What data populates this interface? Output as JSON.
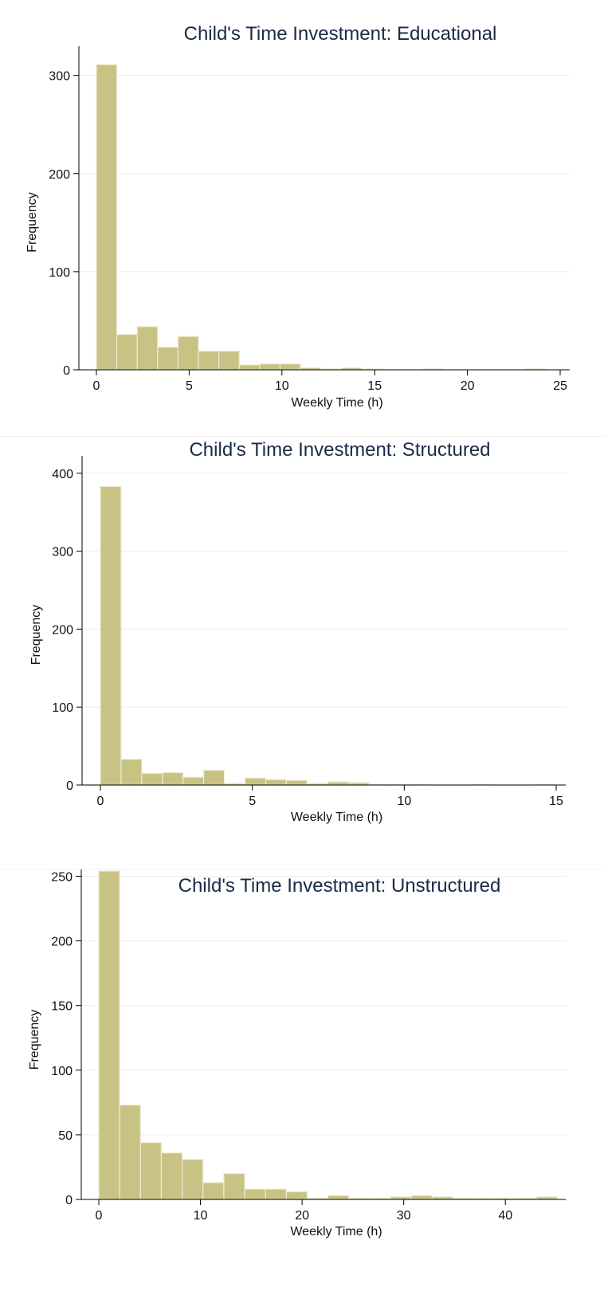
{
  "chart_data": [
    {
      "type": "bar",
      "title": "Child's Time Investment: Educational",
      "xlabel": "Weekly Time (h)",
      "ylabel": "Frequency",
      "xlim": [
        0,
        25
      ],
      "ylim": [
        0,
        320
      ],
      "xticks": [
        0,
        5,
        10,
        15,
        20,
        25
      ],
      "yticks": [
        0,
        100,
        200,
        300
      ],
      "grid": true,
      "bin_width": 1.1,
      "bins": [
        {
          "x0": 0.0,
          "value": 311
        },
        {
          "x0": 1.1,
          "value": 36
        },
        {
          "x0": 2.2,
          "value": 44
        },
        {
          "x0": 3.3,
          "value": 23
        },
        {
          "x0": 4.4,
          "value": 34
        },
        {
          "x0": 5.5,
          "value": 19
        },
        {
          "x0": 6.6,
          "value": 19
        },
        {
          "x0": 7.7,
          "value": 5
        },
        {
          "x0": 8.8,
          "value": 6
        },
        {
          "x0": 9.9,
          "value": 6
        },
        {
          "x0": 11.0,
          "value": 2
        },
        {
          "x0": 12.1,
          "value": 1
        },
        {
          "x0": 13.2,
          "value": 2
        },
        {
          "x0": 14.3,
          "value": 1
        },
        {
          "x0": 17.6,
          "value": 1
        },
        {
          "x0": 23.1,
          "value": 1
        }
      ]
    },
    {
      "type": "bar",
      "title": "Child's Time Investment: Structured",
      "xlabel": "Weekly Time (h)",
      "ylabel": "Frequency",
      "xlim": [
        0,
        15
      ],
      "ylim": [
        0,
        410
      ],
      "xticks": [
        0,
        5,
        10,
        15
      ],
      "yticks": [
        0,
        100,
        200,
        300,
        400
      ],
      "grid": true,
      "bin_width": 0.68,
      "bins": [
        {
          "x0": 0.0,
          "value": 383
        },
        {
          "x0": 0.68,
          "value": 33
        },
        {
          "x0": 1.36,
          "value": 15
        },
        {
          "x0": 2.04,
          "value": 16
        },
        {
          "x0": 2.72,
          "value": 10
        },
        {
          "x0": 3.4,
          "value": 19
        },
        {
          "x0": 4.08,
          "value": 2
        },
        {
          "x0": 4.76,
          "value": 9
        },
        {
          "x0": 5.44,
          "value": 7
        },
        {
          "x0": 6.12,
          "value": 6
        },
        {
          "x0": 6.8,
          "value": 2
        },
        {
          "x0": 7.48,
          "value": 4
        },
        {
          "x0": 8.16,
          "value": 3
        },
        {
          "x0": 8.84,
          "value": 1
        },
        {
          "x0": 9.52,
          "value": 1
        },
        {
          "x0": 10.2,
          "value": 1
        },
        {
          "x0": 12.24,
          "value": 1
        },
        {
          "x0": 14.28,
          "value": 1
        }
      ]
    },
    {
      "type": "bar",
      "title": "Child's Time Investment: Unstructured",
      "xlabel": "Weekly Time (h)",
      "ylabel": "Frequency",
      "xlim": [
        0,
        45
      ],
      "ylim": [
        0,
        262
      ],
      "xticks": [
        0,
        10,
        20,
        30,
        40
      ],
      "yticks": [
        0,
        50,
        100,
        150,
        200,
        250
      ],
      "grid": true,
      "bin_width": 2.05,
      "bins": [
        {
          "x0": 0.0,
          "value": 254
        },
        {
          "x0": 2.05,
          "value": 73
        },
        {
          "x0": 4.1,
          "value": 44
        },
        {
          "x0": 6.15,
          "value": 36
        },
        {
          "x0": 8.2,
          "value": 31
        },
        {
          "x0": 10.25,
          "value": 13
        },
        {
          "x0": 12.3,
          "value": 20
        },
        {
          "x0": 14.35,
          "value": 8
        },
        {
          "x0": 16.4,
          "value": 8
        },
        {
          "x0": 18.45,
          "value": 6
        },
        {
          "x0": 20.5,
          "value": 1
        },
        {
          "x0": 22.55,
          "value": 3
        },
        {
          "x0": 24.6,
          "value": 1
        },
        {
          "x0": 26.65,
          "value": 1
        },
        {
          "x0": 28.7,
          "value": 2
        },
        {
          "x0": 30.75,
          "value": 3
        },
        {
          "x0": 32.8,
          "value": 2
        },
        {
          "x0": 34.85,
          "value": 1
        },
        {
          "x0": 36.9,
          "value": 1
        },
        {
          "x0": 38.95,
          "value": 1
        },
        {
          "x0": 41.0,
          "value": 1
        },
        {
          "x0": 43.05,
          "value": 2
        }
      ]
    }
  ]
}
